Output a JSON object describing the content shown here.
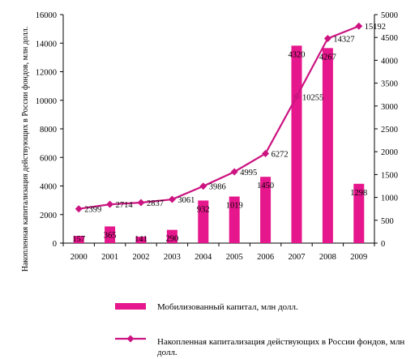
{
  "chart_data": {
    "type": "bar+line",
    "categories": [
      "2000",
      "2001",
      "2002",
      "2003",
      "2004",
      "2005",
      "2006",
      "2007",
      "2008",
      "2009"
    ],
    "series": [
      {
        "name": "Мобилизованный капитал, млн долл.",
        "type": "bar",
        "axis": "right",
        "values": [
          157,
          365,
          141,
          290,
          932,
          1019,
          1450,
          4320,
          4267,
          1298
        ],
        "labels": [
          "157",
          "365",
          "141",
          "290",
          "932",
          "1019",
          "1450",
          "4320",
          "4267",
          "1298"
        ]
      },
      {
        "name": "Накопленная капитализация действующих в России фондов, млн долл.",
        "type": "line",
        "axis": "left",
        "values": [
          2399,
          2714,
          2837,
          3061,
          3986,
          4995,
          6272,
          10255,
          14327,
          15192
        ]
      }
    ],
    "ylabel": "Накопленная капитализация действующих в России фондов, млн долл.",
    "ylim": [
      0,
      16000
    ],
    "y_ticks": [
      "0",
      "2000",
      "4000",
      "6000",
      "8000",
      "10000",
      "12000",
      "14000",
      "16000"
    ],
    "y2lim": [
      0,
      5000
    ],
    "y2_ticks": [
      "0",
      "500",
      "1000",
      "1500",
      "2000",
      "2500",
      "3000",
      "3500",
      "4000",
      "4500",
      "5000"
    ],
    "grid": false,
    "legend_placement": "bottom",
    "colors": {
      "bar": "#e6168c",
      "line": "#cc1380",
      "axis": "#000000"
    }
  }
}
